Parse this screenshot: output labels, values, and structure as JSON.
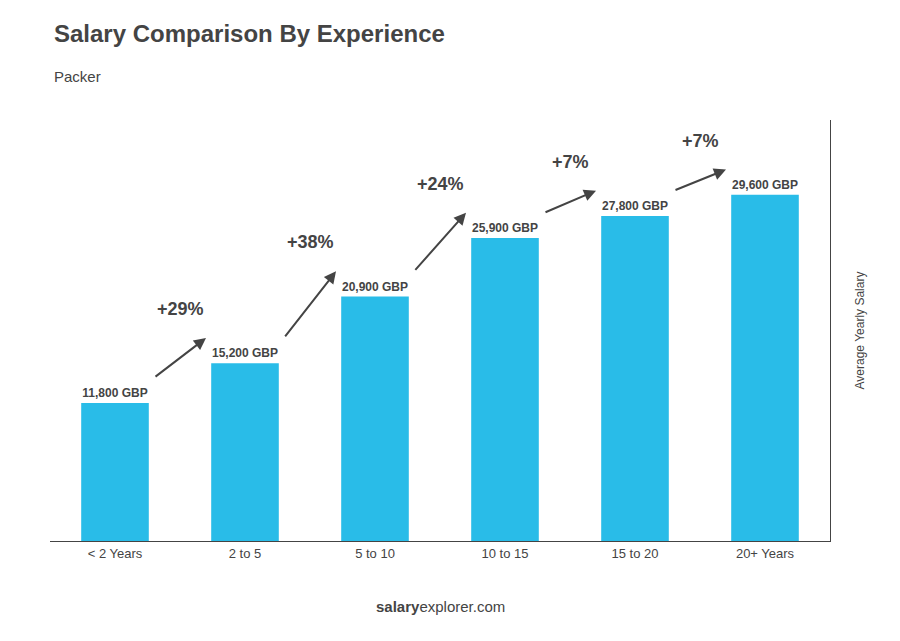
{
  "chart_data": {
    "type": "bar",
    "title": "Salary Comparison By Experience",
    "subtitle": "Packer",
    "categories": [
      "< 2 Years",
      "2 to 5",
      "5 to 10",
      "10 to 15",
      "15 to 20",
      "20+ Years"
    ],
    "values": [
      11800,
      15200,
      20900,
      25900,
      27800,
      29600
    ],
    "value_labels": [
      "11,800 GBP",
      "15,200 GBP",
      "20,900 GBP",
      "25,900 GBP",
      "27,800 GBP",
      "29,600 GBP"
    ],
    "data_labels": true,
    "color": "#29bce8",
    "ylabel": "Average Yearly Salary",
    "annotations": [
      "+29%",
      "+38%",
      "+24%",
      "+7%",
      "+7%"
    ],
    "footer": [
      "salary",
      "explorer.com"
    ],
    "ylim": [
      0,
      36000
    ],
    "grid": false,
    "tick_labels": "x"
  }
}
